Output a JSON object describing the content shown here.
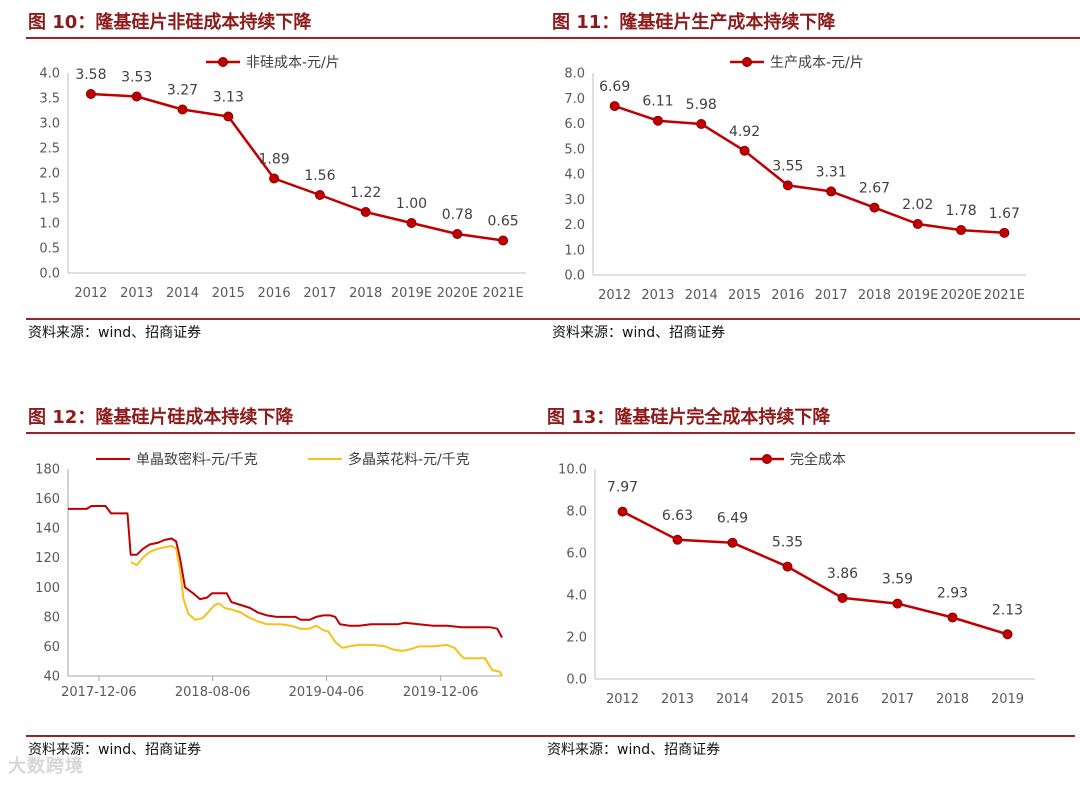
{
  "source_label": "资料来源：wind、招商证券",
  "watermark": "大数跨境",
  "chart_data": [
    {
      "type": "line",
      "title": "图 10：隆基硅片非硅成本持续下降",
      "categories": [
        "2012",
        "2013",
        "2014",
        "2015",
        "2016",
        "2017",
        "2018",
        "2019E",
        "2020E",
        "2021E"
      ],
      "series": [
        {
          "name": "非硅成本-元/片",
          "values": [
            3.58,
            3.53,
            3.27,
            3.13,
            1.89,
            1.56,
            1.22,
            1.0,
            0.78,
            0.65
          ],
          "color": "#c00000"
        }
      ],
      "value_labels": [
        "3.58",
        "3.53",
        "3.27",
        "3.13",
        "1.89",
        "1.56",
        "1.22",
        "1.00",
        "0.78",
        "0.65"
      ],
      "ylim": [
        0,
        4
      ],
      "yticks": [
        "0.0",
        "0.5",
        "1.0",
        "1.5",
        "2.0",
        "2.5",
        "3.0",
        "3.5",
        "4.0"
      ],
      "grid": false,
      "markers": true,
      "legend": "top"
    },
    {
      "type": "line",
      "title": "图 11：隆基硅片生产成本持续下降",
      "categories": [
        "2012",
        "2013",
        "2014",
        "2015",
        "2016",
        "2017",
        "2018",
        "2019E",
        "2020E",
        "2021E"
      ],
      "series": [
        {
          "name": "生产成本-元/片",
          "values": [
            6.69,
            6.11,
            5.98,
            4.92,
            3.55,
            3.31,
            2.67,
            2.02,
            1.78,
            1.67
          ],
          "color": "#c00000"
        }
      ],
      "value_labels": [
        "6.69",
        "6.11",
        "5.98",
        "4.92",
        "3.55",
        "3.31",
        "2.67",
        "2.02",
        "1.78",
        "1.67"
      ],
      "ylim": [
        0,
        8
      ],
      "yticks": [
        "0.0",
        "1.0",
        "2.0",
        "3.0",
        "4.0",
        "5.0",
        "6.0",
        "7.0",
        "8.0"
      ],
      "grid": false,
      "markers": true,
      "legend": "top"
    },
    {
      "type": "line",
      "title": "图 12：隆基硅片硅成本持续下降",
      "x_range": [
        "2017-10-01",
        "2020-04-15"
      ],
      "xticks": [
        "2017-12-06",
        "2018-08-06",
        "2019-04-06",
        "2019-12-06"
      ],
      "series": [
        {
          "name": "单晶致密料-元/千克",
          "color": "#c00000",
          "points": [
            [
              "2017-10-01",
              153
            ],
            [
              "2017-11-10",
              153
            ],
            [
              "2017-11-20",
              155
            ],
            [
              "2017-12-20",
              155
            ],
            [
              "2018-01-01",
              150
            ],
            [
              "2018-02-05",
              150
            ],
            [
              "2018-02-12",
              122
            ],
            [
              "2018-02-25",
              122
            ],
            [
              "2018-03-10",
              126
            ],
            [
              "2018-03-25",
              129
            ],
            [
              "2018-04-10",
              130
            ],
            [
              "2018-04-25",
              132
            ],
            [
              "2018-05-10",
              133
            ],
            [
              "2018-05-20",
              131
            ],
            [
              "2018-05-28",
              120
            ],
            [
              "2018-06-08",
              100
            ],
            [
              "2018-06-25",
              96
            ],
            [
              "2018-07-10",
              92
            ],
            [
              "2018-07-25",
              93
            ],
            [
              "2018-08-05",
              96
            ],
            [
              "2018-08-20",
              96
            ],
            [
              "2018-09-05",
              96
            ],
            [
              "2018-09-15",
              90
            ],
            [
              "2018-10-05",
              88
            ],
            [
              "2018-10-25",
              86
            ],
            [
              "2018-11-10",
              83
            ],
            [
              "2018-11-30",
              81
            ],
            [
              "2018-12-20",
              80
            ],
            [
              "2019-01-10",
              80
            ],
            [
              "2019-01-30",
              80
            ],
            [
              "2019-02-10",
              78
            ],
            [
              "2019-03-01",
              78
            ],
            [
              "2019-03-15",
              80
            ],
            [
              "2019-03-30",
              81
            ],
            [
              "2019-04-15",
              81
            ],
            [
              "2019-04-25",
              80
            ],
            [
              "2019-05-05",
              75
            ],
            [
              "2019-05-25",
              74
            ],
            [
              "2019-06-15",
              74
            ],
            [
              "2019-07-10",
              75
            ],
            [
              "2019-08-10",
              75
            ],
            [
              "2019-09-05",
              75
            ],
            [
              "2019-09-20",
              76
            ],
            [
              "2019-10-20",
              75
            ],
            [
              "2019-11-20",
              74
            ],
            [
              "2019-12-20",
              74
            ],
            [
              "2020-01-20",
              73
            ],
            [
              "2020-02-20",
              73
            ],
            [
              "2020-03-20",
              73
            ],
            [
              "2020-04-05",
              72
            ],
            [
              "2020-04-15",
              66
            ]
          ]
        },
        {
          "name": "多晶菜花料-元/千克",
          "color": "#f5c21b",
          "points": [
            [
              "2018-02-12",
              117
            ],
            [
              "2018-02-25",
              115
            ],
            [
              "2018-03-10",
              120
            ],
            [
              "2018-03-25",
              124
            ],
            [
              "2018-04-10",
              126
            ],
            [
              "2018-04-25",
              127
            ],
            [
              "2018-05-10",
              128
            ],
            [
              "2018-05-20",
              126
            ],
            [
              "2018-05-28",
              112
            ],
            [
              "2018-06-05",
              92
            ],
            [
              "2018-06-15",
              82
            ],
            [
              "2018-06-30",
              78
            ],
            [
              "2018-07-15",
              79
            ],
            [
              "2018-07-30",
              84
            ],
            [
              "2018-08-10",
              88
            ],
            [
              "2018-08-20",
              89
            ],
            [
              "2018-09-01",
              86
            ],
            [
              "2018-09-15",
              85
            ],
            [
              "2018-10-05",
              83
            ],
            [
              "2018-10-20",
              80
            ],
            [
              "2018-11-10",
              77
            ],
            [
              "2018-11-30",
              75
            ],
            [
              "2018-12-30",
              75
            ],
            [
              "2019-01-20",
              74
            ],
            [
              "2019-02-10",
              72
            ],
            [
              "2019-03-01",
              72
            ],
            [
              "2019-03-15",
              74
            ],
            [
              "2019-03-30",
              71
            ],
            [
              "2019-04-10",
              70
            ],
            [
              "2019-04-25",
              63
            ],
            [
              "2019-05-10",
              59
            ],
            [
              "2019-05-25",
              60
            ],
            [
              "2019-06-15",
              61
            ],
            [
              "2019-07-15",
              61
            ],
            [
              "2019-08-10",
              60
            ],
            [
              "2019-08-25",
              58
            ],
            [
              "2019-09-15",
              57
            ],
            [
              "2019-10-01",
              58
            ],
            [
              "2019-10-20",
              60
            ],
            [
              "2019-11-20",
              60
            ],
            [
              "2019-12-20",
              61
            ],
            [
              "2020-01-05",
              59
            ],
            [
              "2020-01-15",
              55
            ],
            [
              "2020-01-25",
              52
            ],
            [
              "2020-02-25",
              52
            ],
            [
              "2020-03-10",
              52
            ],
            [
              "2020-03-25",
              44
            ],
            [
              "2020-04-10",
              43
            ],
            [
              "2020-04-15",
              40
            ]
          ]
        }
      ],
      "ylim": [
        40,
        180
      ],
      "yticks": [
        "40",
        "60",
        "80",
        "100",
        "120",
        "140",
        "160",
        "180"
      ],
      "grid": false,
      "markers": false,
      "legend": "top"
    },
    {
      "type": "line",
      "title": "图 13：隆基硅片完全成本持续下降",
      "categories": [
        "2012",
        "2013",
        "2014",
        "2015",
        "2016",
        "2017",
        "2018",
        "2019"
      ],
      "series": [
        {
          "name": "完全成本",
          "values": [
            7.97,
            6.63,
            6.49,
            5.35,
            3.86,
            3.59,
            2.93,
            2.13
          ],
          "color": "#c00000"
        }
      ],
      "value_labels": [
        "7.97",
        "6.63",
        "6.49",
        "5.35",
        "3.86",
        "3.59",
        "2.93",
        "2.13"
      ],
      "ylim": [
        0,
        10
      ],
      "yticks": [
        "0.0",
        "2.0",
        "4.0",
        "6.0",
        "8.0",
        "10.0"
      ],
      "grid": false,
      "markers": true,
      "legend": "top"
    }
  ]
}
